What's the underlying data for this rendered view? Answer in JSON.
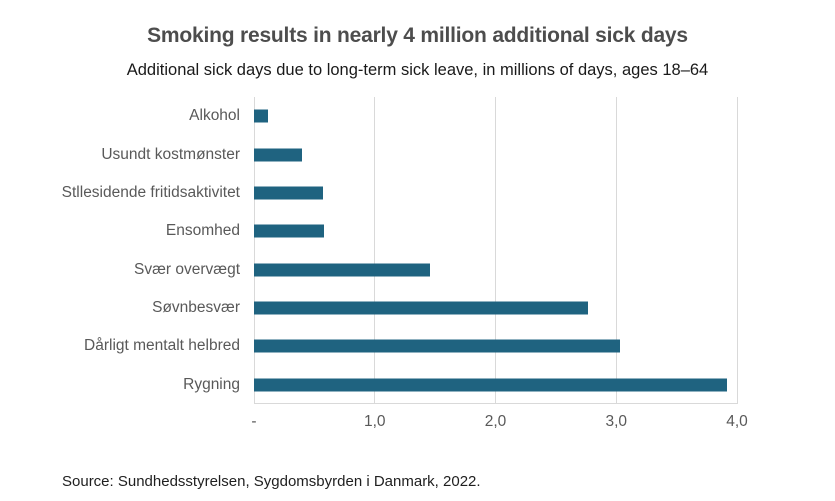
{
  "header": {
    "title": "Smoking results in nearly 4 million additional sick days",
    "subtitle": "Additional sick days due to long-term sick leave, in millions of days, ages 18–64"
  },
  "chart_data": {
    "type": "bar",
    "orientation": "horizontal",
    "title": "Smoking results in nearly 4 million additional sick days",
    "subtitle": "Additional sick days due to long-term sick leave, in millions of days, ages 18–64",
    "categories": [
      "Alkohol",
      "Usundt kostmønster",
      "Stllesidende fritidsaktivitet",
      "Ensomhed",
      "Svær overvægt",
      "Søvnbesvær",
      "Dårligt mentalt helbred",
      "Rygning"
    ],
    "values": [
      0.12,
      0.4,
      0.57,
      0.58,
      1.46,
      2.77,
      3.03,
      3.92
    ],
    "xlim": [
      0,
      4.0
    ],
    "x_ticks": [
      {
        "value": 0,
        "label": "-"
      },
      {
        "value": 1,
        "label": "1,0"
      },
      {
        "value": 2,
        "label": "2,0"
      },
      {
        "value": 3,
        "label": "3,0"
      },
      {
        "value": 4,
        "label": "4,0"
      }
    ],
    "grid": "vertical",
    "legend": "none",
    "colors": {
      "bar": "#1f6380",
      "gridline": "#d9d9d9",
      "title": "#4d4d4d",
      "subtitle": "#1a1a1a",
      "labels": "#595959"
    }
  },
  "footer": {
    "source": "Source: Sundhedsstyrelsen, Sygdomsbyrden i Danmark, 2022."
  }
}
